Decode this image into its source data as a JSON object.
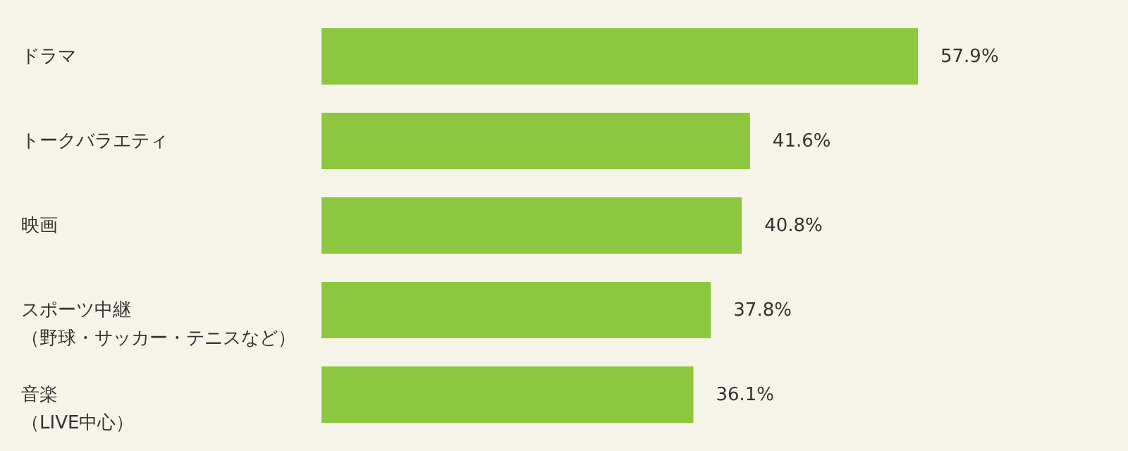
{
  "chart_data": {
    "type": "bar",
    "orientation": "horizontal",
    "data_labels": true,
    "categories": [
      "ドラマ",
      "トークバラエティ",
      "映画",
      "スポーツ中継（野球・サッカー・テニスなど）",
      "音楽（LIVE中心）"
    ],
    "values": [
      57.9,
      41.6,
      40.8,
      37.8,
      36.1
    ],
    "value_labels": [
      "57.9%",
      "41.6%",
      "40.8%",
      "37.8%",
      "36.1%"
    ],
    "color": "#8dc63f"
  }
}
